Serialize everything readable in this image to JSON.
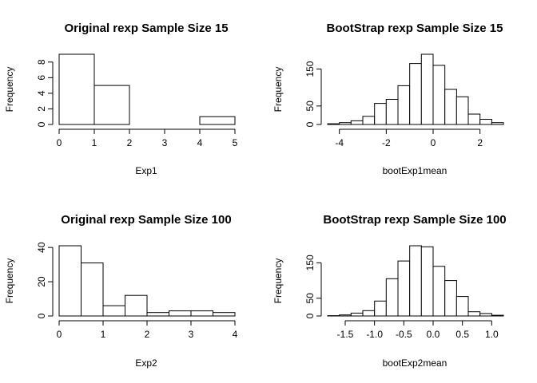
{
  "chart_data": [
    {
      "type": "bar",
      "title": "Original rexp Sample Size 15",
      "xlabel": "Exp1",
      "ylabel": "Frequency",
      "bins": [
        [
          0,
          1
        ],
        [
          1,
          2
        ],
        [
          2,
          3
        ],
        [
          3,
          4
        ],
        [
          4,
          5
        ]
      ],
      "values": [
        9,
        5,
        0,
        0,
        1
      ],
      "xlim": [
        0,
        5
      ],
      "ylim": [
        0,
        9
      ],
      "xticks": [
        0,
        1,
        2,
        3,
        4,
        5
      ],
      "xticklabels": [
        "0",
        "1",
        "2",
        "3",
        "4",
        "5"
      ],
      "yticks": [
        0,
        2,
        4,
        6,
        8
      ],
      "yticklabels": [
        "0",
        "2",
        "4",
        "6",
        "8"
      ]
    },
    {
      "type": "bar",
      "title": "BootStrap rexp Sample Size 15",
      "xlabel": "bootExp1mean",
      "ylabel": "Frequency",
      "bins": [
        [
          -4.5,
          -4
        ],
        [
          -4,
          -3.5
        ],
        [
          -3.5,
          -3
        ],
        [
          -3,
          -2.5
        ],
        [
          -2.5,
          -2
        ],
        [
          -2,
          -1.5
        ],
        [
          -1.5,
          -1
        ],
        [
          -1,
          -0.5
        ],
        [
          -0.5,
          0
        ],
        [
          0,
          0.5
        ],
        [
          0.5,
          1
        ],
        [
          1,
          1.5
        ],
        [
          1.5,
          2
        ],
        [
          2,
          2.5
        ],
        [
          2.5,
          3
        ]
      ],
      "values": [
        2,
        5,
        10,
        22,
        57,
        68,
        105,
        165,
        190,
        160,
        95,
        75,
        28,
        14,
        5
      ],
      "xlim": [
        -4.5,
        3
      ],
      "ylim": [
        0,
        190
      ],
      "xticks": [
        -4,
        -2,
        0,
        2
      ],
      "xticklabels": [
        "-4",
        "-2",
        "0",
        "2"
      ],
      "yticks": [
        0,
        50,
        150
      ],
      "yticklabels": [
        "0",
        "50",
        "150"
      ]
    },
    {
      "type": "bar",
      "title": "Original rexp Sample Size 100",
      "xlabel": "Exp2",
      "ylabel": "Frequency",
      "bins": [
        [
          0,
          0.5
        ],
        [
          0.5,
          1
        ],
        [
          1,
          1.5
        ],
        [
          1.5,
          2
        ],
        [
          2,
          2.5
        ],
        [
          2.5,
          3
        ],
        [
          3,
          3.5
        ],
        [
          3.5,
          4
        ]
      ],
      "values": [
        41,
        31,
        6,
        12,
        2,
        3,
        3,
        2
      ],
      "xlim": [
        0,
        4
      ],
      "ylim": [
        0,
        41
      ],
      "xticks": [
        0,
        1,
        2,
        3,
        4
      ],
      "xticklabels": [
        "0",
        "1",
        "2",
        "3",
        "4"
      ],
      "yticks": [
        0,
        20,
        40
      ],
      "yticklabels": [
        "0",
        "20",
        "40"
      ]
    },
    {
      "type": "bar",
      "title": "BootStrap rexp Sample Size 100",
      "xlabel": "bootExp2mean",
      "ylabel": "Frequency",
      "bins": [
        [
          -1.8,
          -1.6
        ],
        [
          -1.6,
          -1.4
        ],
        [
          -1.4,
          -1.2
        ],
        [
          -1.2,
          -1.0
        ],
        [
          -1.0,
          -0.8
        ],
        [
          -0.8,
          -0.6
        ],
        [
          -0.6,
          -0.4
        ],
        [
          -0.4,
          -0.2
        ],
        [
          -0.2,
          0
        ],
        [
          0,
          0.2
        ],
        [
          0.2,
          0.4
        ],
        [
          0.4,
          0.6
        ],
        [
          0.6,
          0.8
        ],
        [
          0.8,
          1.0
        ],
        [
          1.0,
          1.2
        ]
      ],
      "values": [
        1,
        3,
        8,
        15,
        42,
        105,
        155,
        198,
        195,
        140,
        100,
        55,
        12,
        7,
        2
      ],
      "xlim": [
        -1.8,
        1.2
      ],
      "ylim": [
        0,
        198
      ],
      "xticks": [
        -1.5,
        -1.0,
        -0.5,
        0.0,
        0.5,
        1.0
      ],
      "xticklabels": [
        "-1.5",
        "-1.0",
        "-0.5",
        "0.0",
        "0.5",
        "1.0"
      ],
      "yticks": [
        0,
        50,
        150
      ],
      "yticklabels": [
        "0",
        "50",
        "150"
      ]
    }
  ]
}
